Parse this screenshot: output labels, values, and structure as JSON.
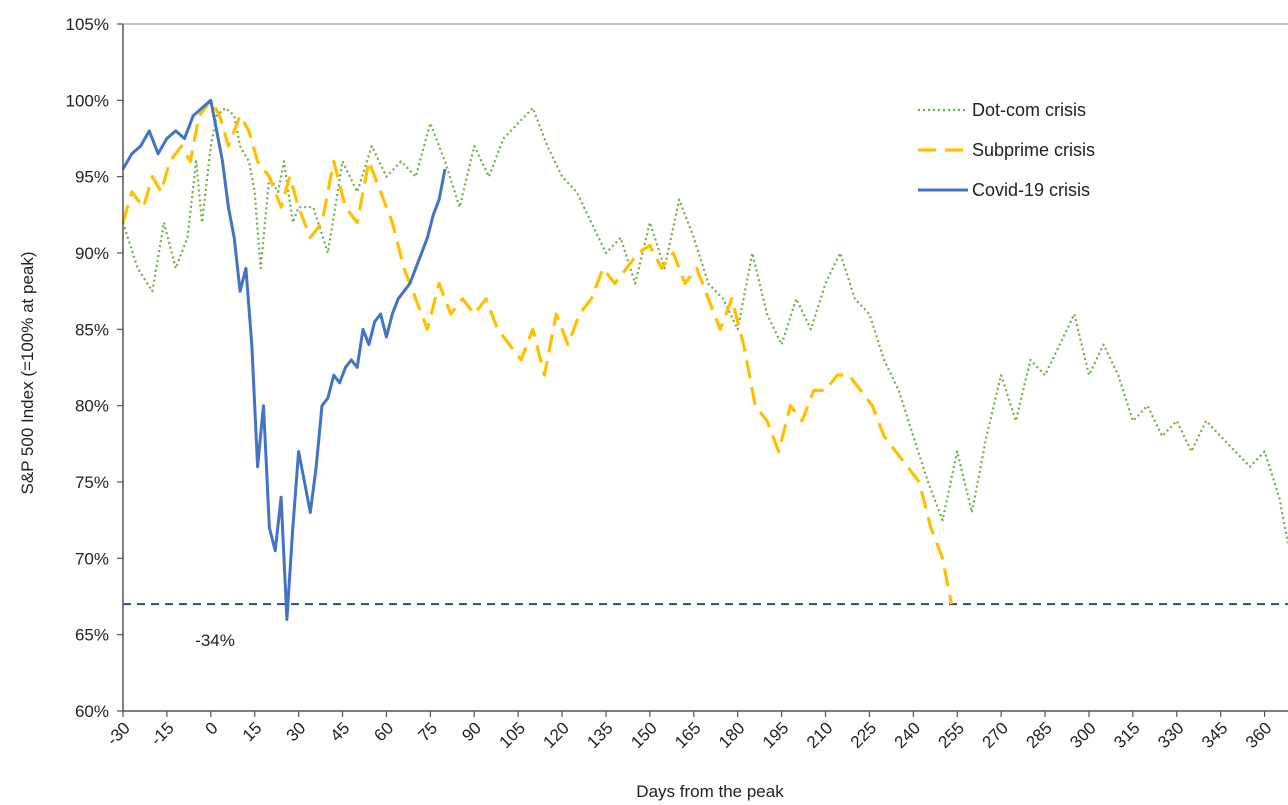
{
  "chart_data": {
    "type": "line",
    "xlabel": "Days from the peak",
    "ylabel": "S&P 500 Index (=100% at peak)",
    "xlim": [
      -30,
      368
    ],
    "ylim": [
      60,
      105
    ],
    "x_ticks": [
      -30,
      -15,
      0,
      15,
      30,
      45,
      60,
      75,
      90,
      105,
      120,
      135,
      150,
      165,
      180,
      195,
      210,
      225,
      240,
      255,
      270,
      285,
      300,
      315,
      330,
      345,
      360
    ],
    "y_ticks": [
      60,
      65,
      70,
      75,
      80,
      85,
      90,
      95,
      100,
      105
    ],
    "y_tick_suffix": "%",
    "legend_position": "top-right",
    "grid": false,
    "reference_line": {
      "y": 67,
      "style": "dashed",
      "color": "#2f4a8a"
    },
    "annotation": {
      "text": "-34%",
      "x": 0,
      "y": 65
    },
    "series": [
      {
        "name": "Dot-com crisis",
        "style": "dotted",
        "color": "#70ad47",
        "x": [
          -30,
          -25,
          -20,
          -16,
          -12,
          -8,
          -5,
          -3,
          0,
          2,
          5,
          8,
          10,
          13,
          15,
          17,
          20,
          23,
          25,
          28,
          30,
          35,
          40,
          45,
          50,
          55,
          60,
          65,
          70,
          75,
          80,
          85,
          90,
          95,
          100,
          105,
          110,
          115,
          120,
          125,
          130,
          135,
          140,
          145,
          150,
          155,
          160,
          165,
          170,
          175,
          180,
          185,
          190,
          195,
          200,
          205,
          210,
          215,
          220,
          225,
          230,
          235,
          240,
          245,
          250,
          255,
          260,
          265,
          270,
          275,
          280,
          285,
          290,
          295,
          300,
          305,
          310,
          315,
          320,
          325,
          330,
          335,
          340,
          345,
          350,
          355,
          360,
          365,
          368
        ],
        "values": [
          92,
          89,
          87.5,
          92,
          89,
          91,
          96,
          92,
          97,
          99,
          99.5,
          99,
          97,
          96,
          94,
          89,
          95,
          94,
          96,
          92,
          93,
          93,
          90,
          96,
          94,
          97,
          95,
          96,
          95,
          98.5,
          96,
          93,
          97,
          95,
          97.5,
          98.5,
          99.5,
          97,
          95,
          94,
          92,
          90,
          91,
          88,
          92,
          89,
          93.5,
          91,
          88,
          87,
          85,
          90,
          86,
          84,
          87,
          85,
          88,
          90,
          87,
          86,
          83,
          81,
          78,
          75,
          72.5,
          77,
          73,
          78,
          82,
          79,
          83,
          82,
          84,
          86,
          82,
          84,
          82,
          79,
          80,
          78,
          79,
          77,
          79,
          78,
          77,
          76,
          77,
          74,
          71
        ]
      },
      {
        "name": "Subprime crisis",
        "style": "dashed",
        "color": "#ffc000",
        "x": [
          -30,
          -27,
          -23,
          -20,
          -17,
          -14,
          -10,
          -7,
          -4,
          0,
          3,
          6,
          10,
          13,
          16,
          20,
          24,
          27,
          30,
          34,
          38,
          42,
          46,
          50,
          54,
          58,
          62,
          66,
          70,
          74,
          78,
          82,
          86,
          90,
          94,
          98,
          102,
          106,
          110,
          114,
          118,
          122,
          126,
          130,
          134,
          138,
          142,
          146,
          150,
          154,
          158,
          162,
          166,
          170,
          174,
          178,
          182,
          186,
          190,
          194,
          198,
          202,
          206,
          210,
          214,
          218,
          222,
          226,
          230,
          234,
          238,
          242,
          246,
          250,
          253
        ],
        "values": [
          92,
          94,
          93,
          95,
          94,
          96,
          97,
          96,
          99,
          100,
          99,
          97,
          99,
          98,
          96,
          95,
          93,
          95,
          93,
          91,
          92,
          96,
          93,
          92,
          96,
          94,
          92,
          89,
          87,
          85,
          88,
          86,
          87,
          86,
          87,
          85,
          84,
          83,
          85,
          82,
          86,
          84,
          86,
          87,
          89,
          88,
          89,
          90,
          90.5,
          89,
          90,
          88,
          89,
          87,
          85,
          87,
          84,
          80,
          79,
          77,
          80,
          79,
          81,
          81,
          82,
          82,
          81,
          80,
          78,
          77,
          76,
          75,
          72,
          70,
          67
        ]
      },
      {
        "name": "Covid-19 crisis",
        "style": "solid",
        "color": "#4472c4",
        "x": [
          -30,
          -27,
          -24,
          -21,
          -18,
          -15,
          -12,
          -9,
          -6,
          -3,
          0,
          2,
          4,
          6,
          8,
          10,
          12,
          14,
          16,
          18,
          20,
          22,
          24,
          26,
          28,
          30,
          32,
          34,
          36,
          38,
          40,
          42,
          44,
          46,
          48,
          50,
          52,
          54,
          56,
          58,
          60,
          62,
          64,
          66,
          68,
          70,
          72,
          74,
          76,
          78,
          80
        ],
        "values": [
          95.5,
          96.5,
          97,
          98,
          96.5,
          97.5,
          98,
          97.5,
          99,
          99.5,
          100,
          98,
          96,
          93,
          91,
          87.5,
          89,
          84,
          76,
          80,
          72,
          70.5,
          74,
          66,
          72,
          77,
          75,
          73,
          76,
          80,
          80.5,
          82,
          81.5,
          82.5,
          83,
          82.5,
          85,
          84,
          85.5,
          86,
          84.5,
          86,
          87,
          87.5,
          88,
          89,
          90,
          91,
          92.5,
          93.5,
          95.5
        ]
      }
    ]
  }
}
